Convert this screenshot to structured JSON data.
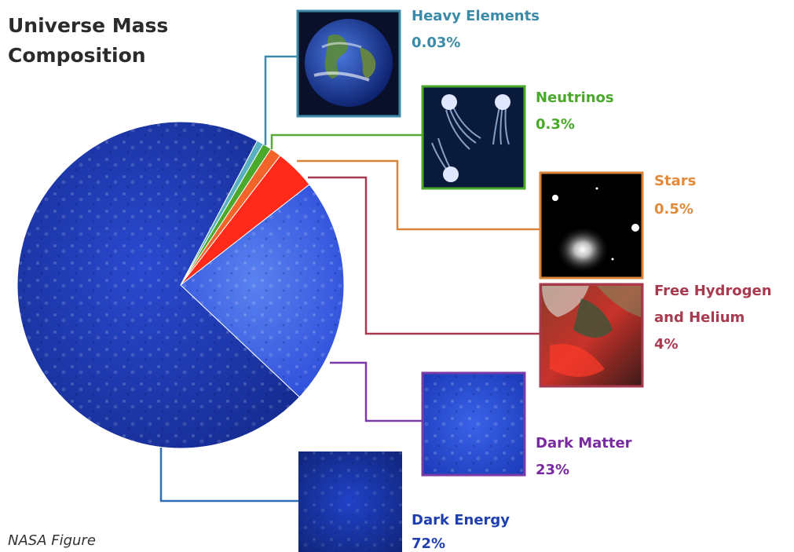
{
  "figure": {
    "title_line1": "Universe Mass",
    "title_line2": "Composition",
    "credit": "NASA Figure"
  },
  "chart_data": {
    "type": "pie",
    "title": "Universe Mass Composition",
    "slices": [
      {
        "name": "Dark Energy",
        "value": 72,
        "value_label": "72%",
        "color": "#1f3fb0",
        "line_color": "#2f6fb8",
        "image": "dark-energy-thumbnail"
      },
      {
        "name": "Dark Matter",
        "value": 23,
        "value_label": "23%",
        "color": "#3a5fe0",
        "line_color": "#7a3aa8",
        "image": "dark-matter-thumbnail"
      },
      {
        "name": "Free Hydrogen and Helium",
        "label_lines": [
          "Free Hydrogen",
          "and Helium"
        ],
        "value": 4,
        "value_label": "4%",
        "color": "#ff2a1a",
        "line_color": "#a83a50",
        "image": "nebula-thumbnail"
      },
      {
        "name": "Stars",
        "value": 0.5,
        "value_label": "0.5%",
        "color": "#f2642a",
        "line_color": "#d8843a",
        "image": "stars-thumbnail"
      },
      {
        "name": "Neutrinos",
        "value": 0.3,
        "value_label": "0.3%",
        "color": "#4aa82a",
        "line_color": "#5aa83a",
        "image": "neutrinos-thumbnail"
      },
      {
        "name": "Heavy Elements",
        "value": 0.03,
        "value_label": "0.03%",
        "color": "#58b0c0",
        "line_color": "#3a8aa8",
        "image": "earth-thumbnail"
      }
    ]
  }
}
